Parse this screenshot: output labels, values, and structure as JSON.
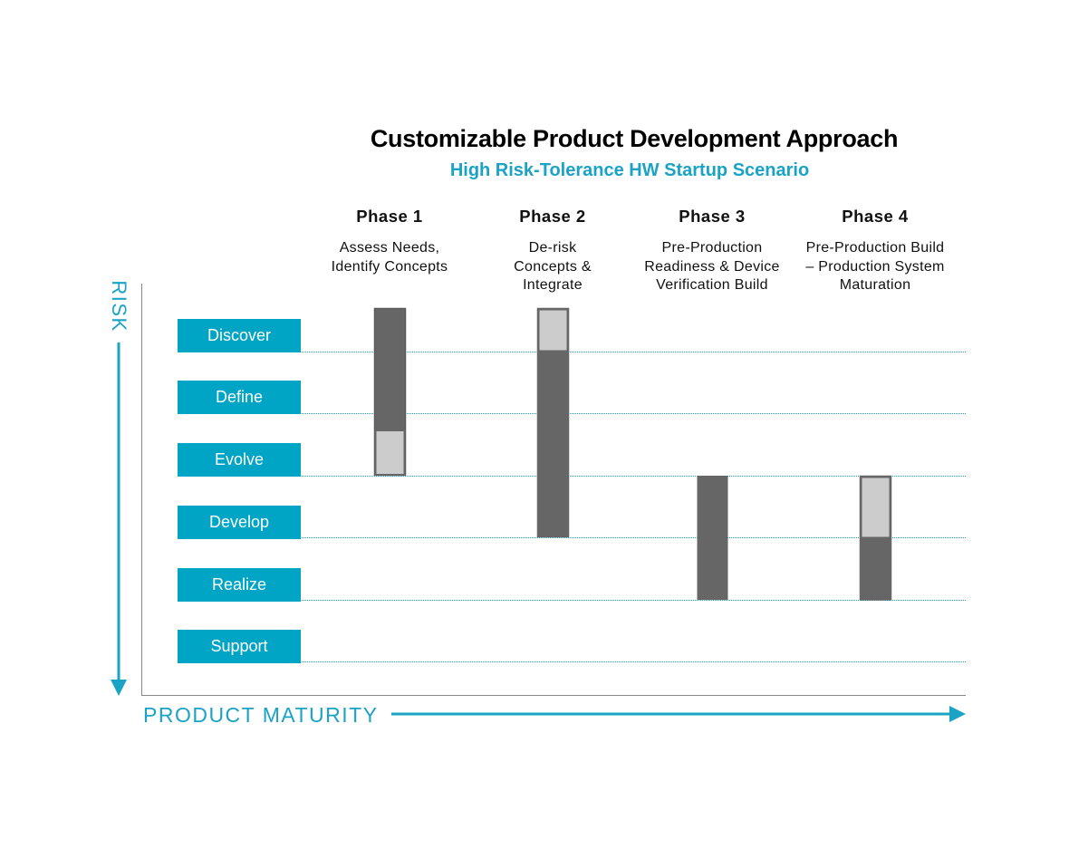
{
  "title": "Customizable Product Development Approach",
  "subtitle": "High Risk-Tolerance HW Startup Scenario",
  "axes": {
    "y_label": "RISK",
    "x_label": "PRODUCT MATURITY"
  },
  "colors": {
    "accent": "#00a4c4",
    "bar_dark": "#666666",
    "bar_light": "#cccccc",
    "axis": "#888888"
  },
  "stages": [
    "Discover",
    "Define",
    "Evolve",
    "Develop",
    "Realize",
    "Support"
  ],
  "phases": [
    {
      "title": "Phase 1",
      "desc_lines": [
        "Assess Needs,",
        "Identify Concepts"
      ]
    },
    {
      "title": "Phase 2",
      "desc_lines": [
        "De-risk",
        "Concepts &",
        "Integrate"
      ]
    },
    {
      "title": "Phase 3",
      "desc_lines": [
        "Pre-Production",
        "Readiness & Device",
        "Verification Build"
      ]
    },
    {
      "title": "Phase 4",
      "desc_lines": [
        "Pre-Production Build",
        "– Production System",
        "Maturation"
      ]
    }
  ],
  "bars": [
    {
      "phase": "Phase 1",
      "segments": [
        {
          "from": "Discover",
          "to": "Evolve",
          "tone": "dark",
          "start_fraction": 0.0,
          "end_fraction": 0.55
        },
        {
          "from": "Evolve",
          "to": "Evolve",
          "tone": "light",
          "start_fraction": 0.55,
          "end_fraction": 1.0
        }
      ]
    },
    {
      "phase": "Phase 2",
      "segments": [
        {
          "from": "Discover",
          "to": "Discover",
          "tone": "light",
          "start_fraction": 0.0,
          "end_fraction": 1.0
        },
        {
          "from": "Define",
          "to": "Develop",
          "tone": "dark",
          "start_fraction": 0.0,
          "end_fraction": 1.0
        }
      ]
    },
    {
      "phase": "Phase 3",
      "segments": [
        {
          "from": "Develop",
          "to": "Realize",
          "tone": "dark",
          "start_fraction": 0.0,
          "end_fraction": 1.0
        }
      ]
    },
    {
      "phase": "Phase 4",
      "segments": [
        {
          "from": "Develop",
          "to": "Develop",
          "tone": "light",
          "start_fraction": 0.0,
          "end_fraction": 1.0
        },
        {
          "from": "Realize",
          "to": "Realize",
          "tone": "dark",
          "start_fraction": 0.0,
          "end_fraction": 1.0
        }
      ]
    }
  ]
}
